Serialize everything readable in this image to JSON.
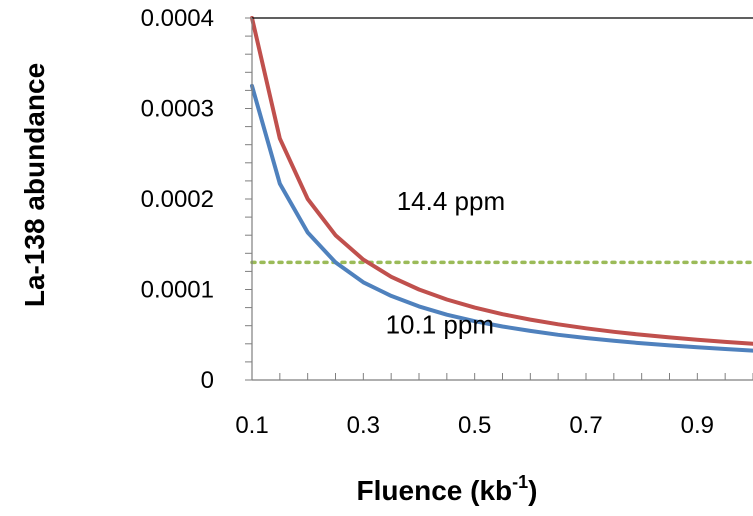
{
  "chart_data": {
    "type": "line",
    "title": "",
    "xlabel": "Fluence (kb",
    "xlabel_superscript": "-1",
    "xlabel_suffix": ")",
    "ylabel": "La-138 abundance",
    "xlim": [
      0.1,
      1.0
    ],
    "ylim": [
      0,
      0.0004
    ],
    "x_ticks": [
      0.1,
      0.3,
      0.5,
      0.7,
      0.9
    ],
    "x_tick_labels": [
      "0.1",
      "0.3",
      "0.5",
      "0.7",
      "0.9"
    ],
    "x_minor_step": 0.05,
    "y_ticks": [
      0,
      0.0001,
      0.0002,
      0.0003,
      0.0004
    ],
    "y_tick_labels": [
      "0",
      "0.0001",
      "0.0002",
      "0.0003",
      "0.0004"
    ],
    "y_minor_step": 2e-05,
    "grid": false,
    "series": [
      {
        "color": "#c0504d",
        "x": [
          0.1,
          0.15,
          0.2,
          0.25,
          0.3,
          0.35,
          0.4,
          0.45,
          0.5,
          0.55,
          0.6,
          0.65,
          0.7,
          0.75,
          0.8,
          0.85,
          0.9,
          0.95,
          1.0
        ],
        "y": [
          0.0004,
          0.000267,
          0.0002,
          0.00016,
          0.000133,
          0.000114,
          0.0001,
          8.89e-05,
          8e-05,
          7.27e-05,
          6.67e-05,
          6.15e-05,
          5.71e-05,
          5.33e-05,
          5e-05,
          4.71e-05,
          4.44e-05,
          4.21e-05,
          4e-05
        ]
      },
      {
        "color": "#4f81bd",
        "x": [
          0.1,
          0.15,
          0.2,
          0.25,
          0.3,
          0.35,
          0.4,
          0.45,
          0.5,
          0.55,
          0.6,
          0.65,
          0.7,
          0.75,
          0.8,
          0.85,
          0.9,
          0.95,
          1.0
        ],
        "y": [
          0.000325,
          0.000217,
          0.000163,
          0.00013,
          0.000108,
          9.29e-05,
          8.13e-05,
          7.22e-05,
          6.5e-05,
          5.91e-05,
          5.42e-05,
          5e-05,
          4.64e-05,
          4.33e-05,
          4.06e-05,
          3.82e-05,
          3.61e-05,
          3.42e-05,
          3.25e-05
        ]
      }
    ],
    "reference_line": {
      "y": 0.00013,
      "color": "#9bbb59",
      "style": "dotted"
    },
    "annotations": [
      {
        "text": "14.4 ppm",
        "x": 0.36,
        "y": 0.000188
      },
      {
        "text": "10.1 ppm",
        "x": 0.34,
        "y": 5.15e-05
      }
    ]
  }
}
